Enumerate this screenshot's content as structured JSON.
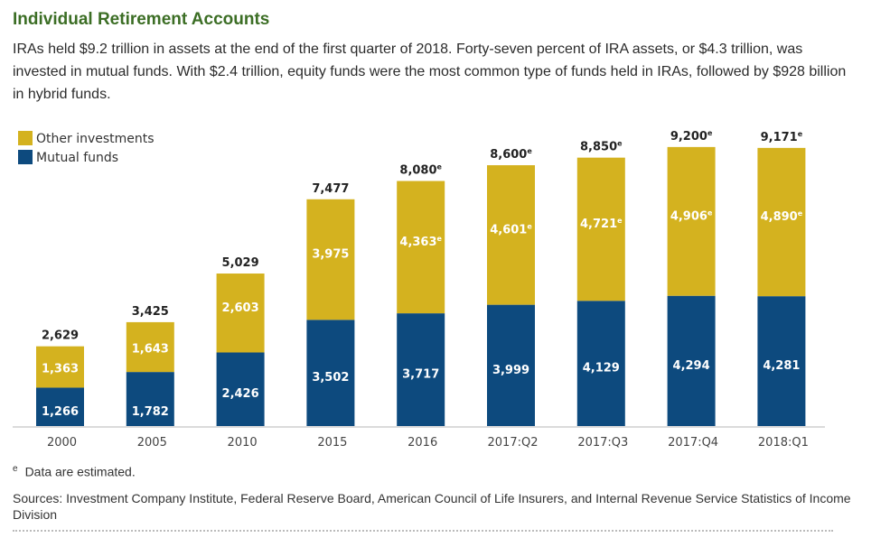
{
  "title": "Individual Retirement Accounts",
  "intro": "IRAs held $9.2 trillion in assets at the end of the first quarter of 2018. Forty-seven percent of IRA assets, or $4.3 trillion, was invested in mutual funds. With $2.4 trillion, equity funds were the most common type of funds held in IRAs, followed by $928 billion in hybrid funds.",
  "colors": {
    "other": "#d4b21f",
    "mutual": "#0d4a7e",
    "title": "#3c6e25"
  },
  "chart_data": {
    "type": "bar",
    "stacked": true,
    "categories": [
      "2000",
      "2005",
      "2010",
      "2015",
      "2016",
      "2017:Q2",
      "2017:Q3",
      "2017:Q4",
      "2018:Q1"
    ],
    "series": [
      {
        "name": "Mutual funds",
        "values": [
          1266,
          1782,
          2426,
          3502,
          3717,
          3999,
          4129,
          4294,
          4281
        ],
        "labels": [
          "1,266",
          "1,782",
          "2,426",
          "3,502",
          "3,717",
          "3,999",
          "4,129",
          "4,294",
          "4,281"
        ],
        "estimated": [
          false,
          false,
          false,
          false,
          false,
          false,
          false,
          false,
          false
        ]
      },
      {
        "name": "Other investments",
        "values": [
          1363,
          1643,
          2603,
          3975,
          4363,
          4601,
          4721,
          4906,
          4890
        ],
        "labels": [
          "1,363",
          "1,643",
          "2,603",
          "3,975",
          "4,363",
          "4,601",
          "4,721",
          "4,906",
          "4,890"
        ],
        "estimated": [
          false,
          false,
          false,
          false,
          true,
          true,
          true,
          true,
          true
        ]
      }
    ],
    "totals": [
      2629,
      3425,
      5029,
      7477,
      8080,
      8600,
      8850,
      9200,
      9171
    ],
    "total_labels": [
      "2,629",
      "3,425",
      "5,029",
      "7,477",
      "8,080",
      "8,600",
      "8,850",
      "9,200",
      "9,171"
    ],
    "total_estimated": [
      false,
      false,
      false,
      false,
      true,
      true,
      true,
      true,
      true
    ],
    "estimate_marker": "e",
    "legend": [
      "Other investments",
      "Mutual funds"
    ],
    "legend_position": "top-left",
    "ylim": [
      0,
      10000
    ],
    "units": "billions of dollars",
    "xlabel": "",
    "ylabel": "",
    "grid": false
  },
  "footnote": {
    "marker": "e",
    "text": "Data are estimated."
  },
  "sources": "Sources: Investment Company Institute, Federal Reserve Board, American Council of Life Insurers, and Internal Revenue Service Statistics of Income Division"
}
